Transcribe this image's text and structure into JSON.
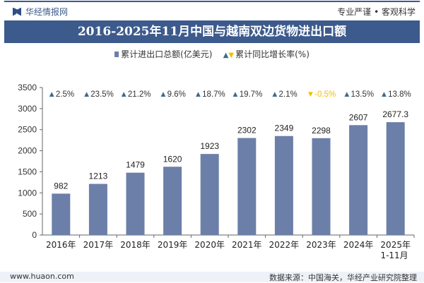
{
  "header": {
    "brand": "华经情报网",
    "slogan": "专业严谨 • 客观科学",
    "title": "2016-2025年11月中国与越南双边货物进出口额"
  },
  "legend": {
    "bar": "累计进出口总额(亿美元)",
    "line": "累计同比增长率(%)"
  },
  "footer": {
    "website": "www.huaon.com",
    "source": "数据来源：中国海关，华经产业研究院整理"
  },
  "colors": {
    "bar": "#6b7fa8",
    "up": "#3c6b8c",
    "down": "#f0c000",
    "title_bg": "#3c5a8c"
  },
  "chart_data": {
    "type": "bar",
    "title": "2016-2025年11月中国与越南双边货物进出口额",
    "categories": [
      "2016年",
      "2017年",
      "2018年",
      "2019年",
      "2020年",
      "2021年",
      "2022年",
      "2023年",
      "2024年",
      "2025年\n1-11月"
    ],
    "series": [
      {
        "name": "累计进出口总额(亿美元)",
        "values": [
          982,
          1213,
          1479,
          1620,
          1923,
          2302,
          2349,
          2298,
          2607,
          2677.3
        ],
        "labels": [
          "982",
          "1213",
          "1479",
          "1620",
          "1923",
          "2302",
          "2349",
          "2298",
          "2607",
          "2677.3"
        ]
      },
      {
        "name": "累计同比增长率(%)",
        "values": [
          2.5,
          23.5,
          21.2,
          9.6,
          18.7,
          19.7,
          2.1,
          -0.5,
          13.5,
          13.8
        ],
        "labels": [
          "2.5%",
          "23.5%",
          "21.2%",
          "9.6%",
          "18.7%",
          "19.7%",
          "2.1%",
          "-0.5%",
          "13.5%",
          "13.8%"
        ]
      }
    ],
    "yticks": [
      0,
      500,
      1000,
      1500,
      2000,
      2500,
      3000,
      3500
    ],
    "ylim": [
      0,
      3500
    ],
    "grid": false,
    "legend_position": "top"
  }
}
